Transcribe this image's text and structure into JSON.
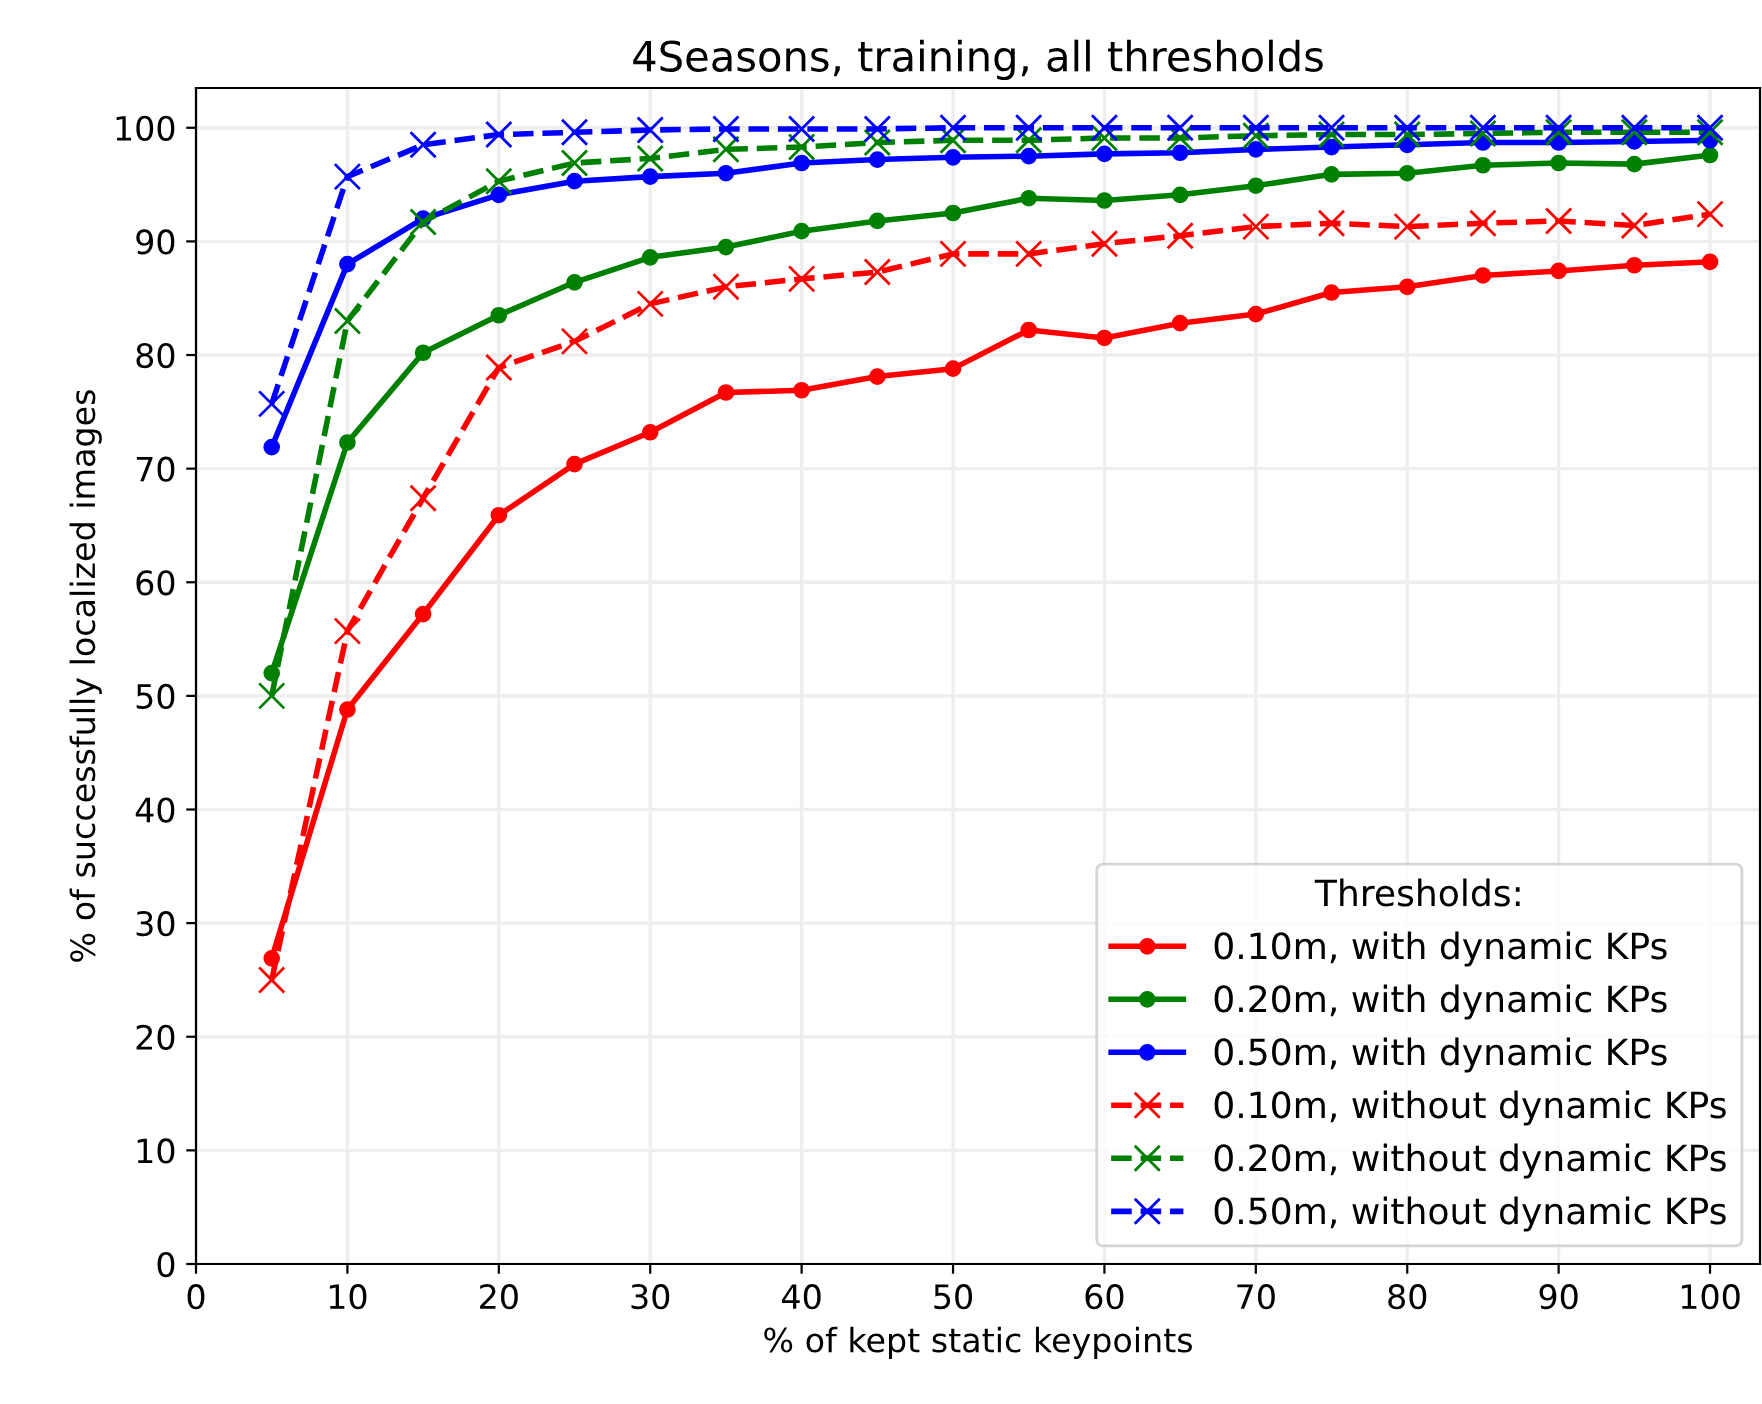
{
  "chart_data": {
    "type": "line",
    "title": "4Seasons, training, all thresholds",
    "xlabel": "% of kept static keypoints",
    "ylabel": "% of successfully localized images",
    "legend_title": "Thresholds:",
    "legend": "bottom right",
    "grid": true,
    "x": [
      5,
      10,
      15,
      20,
      25,
      30,
      35,
      40,
      45,
      50,
      55,
      60,
      65,
      70,
      75,
      80,
      85,
      90,
      95,
      100
    ],
    "xlim": [
      0,
      103.3
    ],
    "xticks": [
      0,
      10,
      20,
      30,
      40,
      50,
      60,
      70,
      80,
      90,
      100
    ],
    "ylim": [
      0,
      103.5
    ],
    "yticks": [
      0,
      10,
      20,
      30,
      40,
      50,
      60,
      70,
      80,
      90,
      100
    ],
    "series": [
      {
        "name": "0.10m, with dynamic KPs",
        "color": "#ff0000",
        "marker": "circle",
        "line_style": "solid",
        "values": [
          26.9,
          48.8,
          57.2,
          65.9,
          70.4,
          73.2,
          76.7,
          76.9,
          78.1,
          78.8,
          82.2,
          81.5,
          82.8,
          83.6,
          85.5,
          86.0,
          87.0,
          87.4,
          87.9,
          88.2
        ]
      },
      {
        "name": "0.20m, with dynamic KPs",
        "color": "#008000",
        "marker": "circle",
        "line_style": "solid",
        "values": [
          52.0,
          72.3,
          80.2,
          83.5,
          86.4,
          88.6,
          89.5,
          90.9,
          91.8,
          92.5,
          93.8,
          93.6,
          94.1,
          94.9,
          95.9,
          96.0,
          96.7,
          96.9,
          96.8,
          97.6
        ]
      },
      {
        "name": "0.50m, with dynamic KPs",
        "color": "#0000ff",
        "marker": "circle",
        "line_style": "solid",
        "values": [
          71.9,
          88.0,
          92.0,
          94.1,
          95.3,
          95.7,
          96.0,
          96.9,
          97.2,
          97.4,
          97.5,
          97.7,
          97.8,
          98.1,
          98.3,
          98.5,
          98.7,
          98.7,
          98.8,
          98.9
        ]
      },
      {
        "name": "0.10m, without dynamic KPs",
        "color": "#ff0000",
        "marker": "cross",
        "line_style": "dashed",
        "values": [
          25.0,
          55.7,
          67.4,
          78.9,
          81.2,
          84.5,
          86.0,
          86.7,
          87.3,
          88.9,
          88.9,
          89.8,
          90.5,
          91.3,
          91.6,
          91.3,
          91.6,
          91.8,
          91.4,
          92.4
        ]
      },
      {
        "name": "0.20m, without dynamic KPs",
        "color": "#008000",
        "marker": "cross",
        "line_style": "dashed",
        "values": [
          50.0,
          83.0,
          91.7,
          95.3,
          96.9,
          97.3,
          98.1,
          98.3,
          98.7,
          98.9,
          98.9,
          99.1,
          99.1,
          99.3,
          99.4,
          99.4,
          99.5,
          99.6,
          99.6,
          99.6
        ]
      },
      {
        "name": "0.50m, without dynamic KPs",
        "color": "#0000ff",
        "marker": "cross",
        "line_style": "dashed",
        "values": [
          75.7,
          95.7,
          98.5,
          99.4,
          99.6,
          99.8,
          99.9,
          99.9,
          99.9,
          100,
          100,
          100,
          100,
          100,
          100,
          100,
          100,
          100,
          100,
          100
        ]
      }
    ]
  }
}
